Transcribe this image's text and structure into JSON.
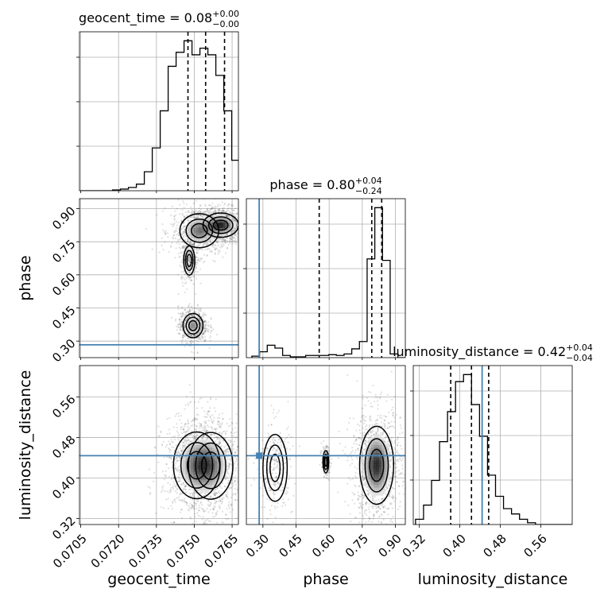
{
  "chart_data": {
    "type": "corner",
    "truth_color": "#4682b4",
    "params": [
      {
        "name": "geocent_time",
        "axis_label": "geocent_time",
        "range": [
          0.07045,
          0.07675
        ],
        "ticks": [
          "0.0705",
          "0.0720",
          "0.0735",
          "0.0750",
          "0.0765"
        ],
        "tick_values": [
          0.0705,
          0.072,
          0.0735,
          0.075,
          0.0765
        ],
        "title": {
          "prefix": "geocent_time = ",
          "value": "0.08",
          "plus": "+0.00",
          "minus": "−0.00"
        },
        "quantiles": [
          0.07475,
          0.07545,
          0.0762
        ],
        "truth": null,
        "hist_start": 0.0705,
        "hist_width": 0.000315,
        "hist_counts": [
          0,
          0,
          0,
          0,
          1,
          2,
          4,
          8,
          23,
          52,
          97,
          151,
          168,
          182,
          165,
          173,
          165,
          140,
          97,
          37
        ]
      },
      {
        "name": "phase",
        "axis_label": "phase",
        "range": [
          0.225,
          0.945
        ],
        "ticks": [
          "0.30",
          "0.45",
          "0.60",
          "0.75",
          "0.90"
        ],
        "tick_values": [
          0.3,
          0.45,
          0.6,
          0.75,
          0.9
        ],
        "title": {
          "prefix": "phase = ",
          "value": "0.80",
          "plus": "+0.04",
          "minus": "−0.24"
        },
        "quantiles": [
          0.555,
          0.793,
          0.838
        ],
        "truth": 0.283,
        "hist_start": 0.25,
        "hist_width": 0.0348,
        "hist_counts": [
          2,
          8,
          17,
          13,
          3,
          1,
          1,
          3,
          3,
          3,
          4,
          3,
          5,
          12,
          22,
          135,
          205,
          133,
          5,
          0
        ]
      },
      {
        "name": "luminosity_distance",
        "axis_label": "luminosity_distance",
        "range": [
          0.308,
          0.622
        ],
        "ticks": [
          "0.32",
          "0.40",
          "0.48",
          "0.56"
        ],
        "tick_values": [
          0.32,
          0.4,
          0.48,
          0.56
        ],
        "title": {
          "prefix": "luminosity_distance = ",
          "value": "0.42",
          "plus": "+0.04",
          "minus": "−0.04"
        },
        "quantiles": [
          0.382,
          0.423,
          0.457
        ],
        "truth": 0.444,
        "hist_start": 0.3125,
        "hist_width": 0.0158,
        "hist_counts": [
          3,
          11,
          25,
          47,
          64,
          81,
          85,
          68,
          50,
          28,
          16,
          9,
          6,
          3,
          1,
          0,
          0,
          0,
          0,
          0
        ]
      }
    ],
    "pairs": [
      {
        "x": "geocent_time",
        "y": "phase",
        "blobs": [
          {
            "cx": 0.07605,
            "cy": 0.825,
            "sx": 0.00032,
            "sy": 0.025,
            "w": 1.0
          },
          {
            "cx": 0.0752,
            "cy": 0.8,
            "sx": 0.00035,
            "sy": 0.035,
            "w": 0.7
          },
          {
            "cx": 0.0748,
            "cy": 0.665,
            "sx": 0.0001,
            "sy": 0.03,
            "w": 0.2
          },
          {
            "cx": 0.07495,
            "cy": 0.37,
            "sx": 0.00018,
            "sy": 0.025,
            "w": 0.6
          }
        ]
      },
      {
        "x": "geocent_time",
        "y": "luminosity_distance",
        "blobs": [
          {
            "cx": 0.0751,
            "cy": 0.425,
            "sx": 0.00042,
            "sy": 0.03,
            "w": 1.0
          },
          {
            "cx": 0.07565,
            "cy": 0.424,
            "sx": 0.0004,
            "sy": 0.03,
            "w": 0.9
          }
        ]
      },
      {
        "x": "phase",
        "y": "luminosity_distance",
        "blobs": [
          {
            "cx": 0.815,
            "cy": 0.425,
            "sx": 0.035,
            "sy": 0.035,
            "w": 1.0
          },
          {
            "cx": 0.355,
            "cy": 0.42,
            "sx": 0.025,
            "sy": 0.03,
            "w": 0.18
          },
          {
            "cx": 0.585,
            "cy": 0.432,
            "sx": 0.006,
            "sy": 0.01,
            "w": 0.06
          }
        ]
      }
    ]
  }
}
